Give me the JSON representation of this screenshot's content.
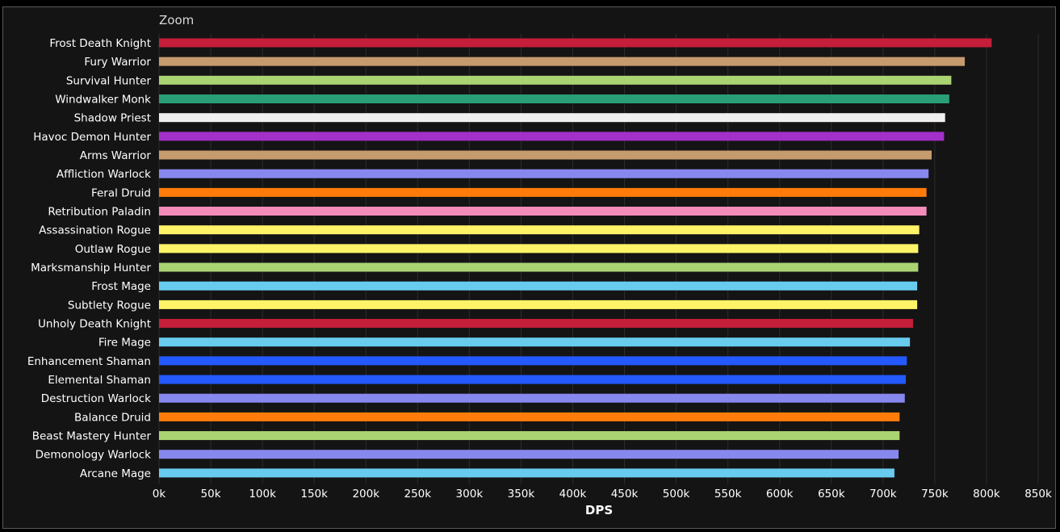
{
  "zoom_label": "Zoom",
  "chart_data": {
    "type": "bar",
    "orientation": "horizontal",
    "title": "",
    "xlabel": "DPS",
    "ylabel": "",
    "xlim": [
      0,
      850000
    ],
    "ticks": [
      {
        "value": 0,
        "label": "0k"
      },
      {
        "value": 50000,
        "label": "50k"
      },
      {
        "value": 100000,
        "label": "100k"
      },
      {
        "value": 150000,
        "label": "150k"
      },
      {
        "value": 200000,
        "label": "200k"
      },
      {
        "value": 250000,
        "label": "250k"
      },
      {
        "value": 300000,
        "label": "300k"
      },
      {
        "value": 350000,
        "label": "350k"
      },
      {
        "value": 400000,
        "label": "400k"
      },
      {
        "value": 450000,
        "label": "450k"
      },
      {
        "value": 500000,
        "label": "500k"
      },
      {
        "value": 550000,
        "label": "550k"
      },
      {
        "value": 600000,
        "label": "600k"
      },
      {
        "value": 650000,
        "label": "650k"
      },
      {
        "value": 700000,
        "label": "700k"
      },
      {
        "value": 750000,
        "label": "750k"
      },
      {
        "value": 800000,
        "label": "800k"
      },
      {
        "value": 850000,
        "label": "850k"
      }
    ],
    "grid": true,
    "categories": [
      "Frost Death Knight",
      "Fury Warrior",
      "Survival Hunter",
      "Windwalker Monk",
      "Shadow Priest",
      "Havoc Demon Hunter",
      "Arms Warrior",
      "Affliction Warlock",
      "Feral Druid",
      "Retribution Paladin",
      "Assassination Rogue",
      "Outlaw Rogue",
      "Marksmanship Hunter",
      "Frost Mage",
      "Subtlety Rogue",
      "Unholy Death Knight",
      "Fire Mage",
      "Enhancement Shaman",
      "Elemental Shaman",
      "Destruction Warlock",
      "Balance Druid",
      "Beast Mastery Hunter",
      "Demonology Warlock",
      "Arcane Mage"
    ],
    "values": [
      805000,
      779000,
      766000,
      764000,
      760000,
      759000,
      747000,
      744000,
      742000,
      742000,
      735000,
      734000,
      734000,
      733000,
      733000,
      729000,
      726000,
      723000,
      722000,
      721000,
      716000,
      716000,
      715000,
      711000
    ],
    "colors": [
      "#C41E3A",
      "#C69B6D",
      "#AAD372",
      "#2A9F77",
      "#F0F0F0",
      "#A330C9",
      "#C69B6D",
      "#8788EE",
      "#FF7C0A",
      "#F48CBA",
      "#FFF468",
      "#FFF468",
      "#AAD372",
      "#68CCEF",
      "#FFF468",
      "#C41E3A",
      "#68CCEF",
      "#2359FF",
      "#2359FF",
      "#8788EE",
      "#FF7C0A",
      "#AAD372",
      "#8788EE",
      "#68CCEF"
    ]
  }
}
